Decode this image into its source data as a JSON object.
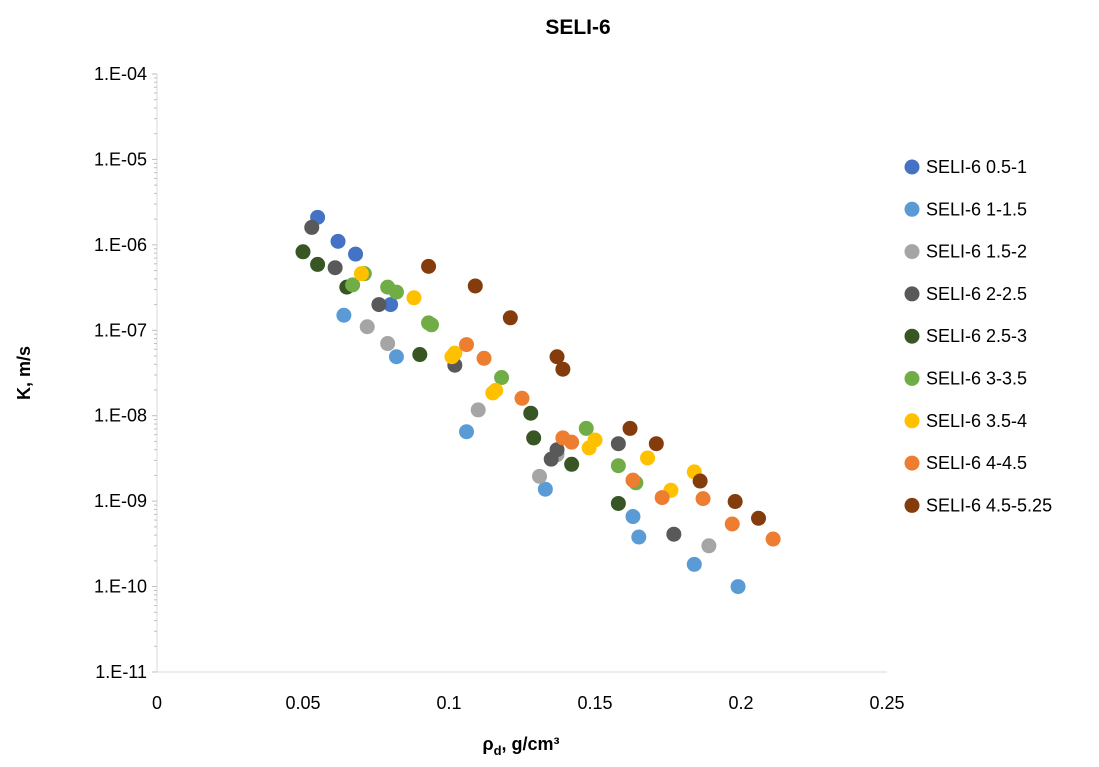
{
  "chart_data": {
    "type": "scatter",
    "title": "SELI-6",
    "xlabel": "ρd, g/cm³",
    "xlabel_main": "ρ",
    "xlabel_sub": "d",
    "xlabel_rest": ", g/cm³",
    "ylabel": "K, m/s",
    "xlim": [
      0,
      0.25
    ],
    "ylim": [
      1e-11,
      0.0001
    ],
    "yscale": "log",
    "x_ticks": [
      "0",
      "0.05",
      "0.1",
      "0.15",
      "0.2",
      "0.25"
    ],
    "y_ticks": [
      "1.E-04",
      "1.E-05",
      "1.E-06",
      "1.E-07",
      "1.E-08",
      "1.E-09",
      "1.E-10",
      "1.E-11"
    ],
    "grid": false,
    "legend_position": "right",
    "series": [
      {
        "name": "SELI-6 0.5-1",
        "color": "#4472C4",
        "x": [
          0.055,
          0.062,
          0.068,
          0.08
        ],
        "y": [
          2.1e-06,
          1.1e-06,
          7.8e-07,
          2e-07
        ]
      },
      {
        "name": "SELI-6 1-1.5",
        "color": "#5B9BD5",
        "x": [
          0.064,
          0.082,
          0.106,
          0.133,
          0.163,
          0.165,
          0.184,
          0.199
        ],
        "y": [
          1.5e-07,
          4.9e-08,
          6.5e-09,
          1.38e-09,
          6.6e-10,
          3.8e-10,
          1.82e-10,
          1e-10
        ]
      },
      {
        "name": "SELI-6 1.5-2",
        "color": "#A5A5A5",
        "x": [
          0.072,
          0.079,
          0.11,
          0.131,
          0.137,
          0.189
        ],
        "y": [
          1.1e-07,
          7e-08,
          1.17e-08,
          1.95e-09,
          3.5e-09,
          3e-10
        ]
      },
      {
        "name": "SELI-6 2-2.5",
        "color": "#595959",
        "x": [
          0.053,
          0.061,
          0.076,
          0.102,
          0.135,
          0.137,
          0.158,
          0.177
        ],
        "y": [
          1.6e-06,
          5.4e-07,
          2e-07,
          3.9e-08,
          3.1e-09,
          4e-09,
          4.7e-09,
          4.1e-10
        ]
      },
      {
        "name": "SELI-6 2.5-3",
        "color": "#375623",
        "x": [
          0.05,
          0.055,
          0.065,
          0.09,
          0.128,
          0.129,
          0.142,
          0.158
        ],
        "y": [
          8.3e-07,
          5.9e-07,
          3.2e-07,
          5.2e-08,
          1.07e-08,
          5.5e-09,
          2.7e-09,
          9.4e-10
        ]
      },
      {
        "name": "SELI-6 3-3.5",
        "color": "#70AD47",
        "x": [
          0.067,
          0.071,
          0.079,
          0.082,
          0.093,
          0.094,
          0.118,
          0.147,
          0.158,
          0.164
        ],
        "y": [
          3.4e-07,
          4.6e-07,
          3.2e-07,
          2.8e-07,
          1.22e-07,
          1.16e-07,
          2.8e-08,
          7.1e-09,
          2.6e-09,
          1.64e-09
        ]
      },
      {
        "name": "SELI-6 3.5-4",
        "color": "#FFC000",
        "x": [
          0.07,
          0.088,
          0.101,
          0.102,
          0.115,
          0.116,
          0.148,
          0.15,
          0.168,
          0.176,
          0.184
        ],
        "y": [
          4.6e-07,
          2.4e-07,
          4.9e-08,
          5.4e-08,
          1.85e-08,
          1.98e-08,
          4.2e-09,
          5.2e-09,
          3.2e-09,
          1.34e-09,
          2.2e-09
        ]
      },
      {
        "name": "SELI-6 4-4.5",
        "color": "#ED7D31",
        "x": [
          0.106,
          0.112,
          0.125,
          0.139,
          0.142,
          0.163,
          0.173,
          0.187,
          0.197,
          0.211
        ],
        "y": [
          6.8e-08,
          4.7e-08,
          1.6e-08,
          5.5e-09,
          4.9e-09,
          1.76e-09,
          1.1e-09,
          1.07e-09,
          5.4e-10,
          3.6e-10
        ]
      },
      {
        "name": "SELI-6 4.5-5.25",
        "color": "#843C0C",
        "x": [
          0.093,
          0.109,
          0.121,
          0.137,
          0.139,
          0.162,
          0.171,
          0.186,
          0.198,
          0.206
        ],
        "y": [
          5.6e-07,
          3.3e-07,
          1.4e-07,
          4.9e-08,
          3.5e-08,
          7.1e-09,
          4.7e-09,
          1.72e-09,
          9.9e-10,
          6.3e-10
        ]
      }
    ]
  }
}
